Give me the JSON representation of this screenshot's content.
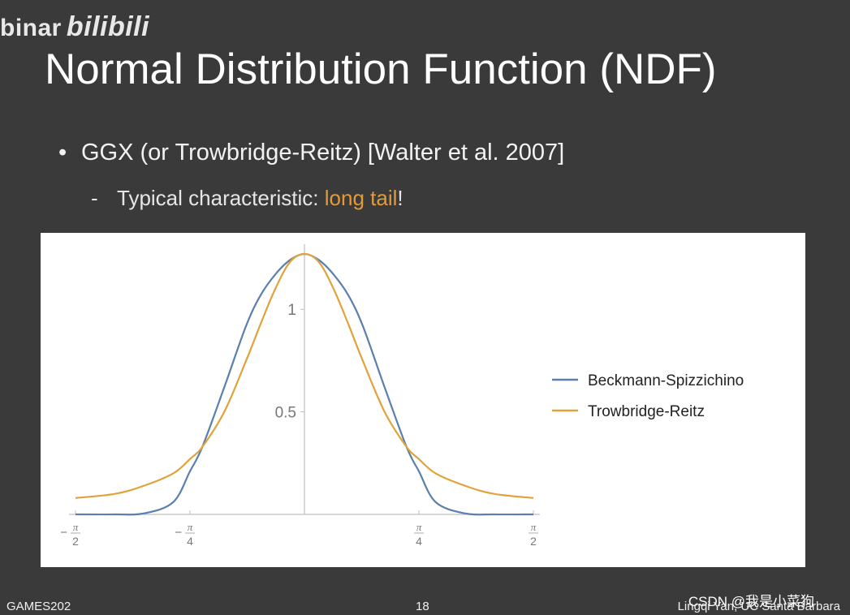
{
  "watermark": {
    "left_text": "binar",
    "logo_text": "bilibili"
  },
  "slide": {
    "title": "Normal Distribution Function (NDF)",
    "bullet": "GGX (or Trowbridge-Reitz) [Walter et al. 2007]",
    "sub_prefix": "Typical characteristic: ",
    "sub_highlight": "long tail",
    "sub_suffix": "!"
  },
  "colors": {
    "accent": "#e39a3b",
    "beckmann": "#5b7fae",
    "trowbridge": "#e0a33c",
    "background": "#3a3a3a"
  },
  "chart_data": {
    "type": "line",
    "title": "",
    "xlabel": "",
    "ylabel": "",
    "xlim": [
      -1.5708,
      1.5708
    ],
    "ylim": [
      0,
      1.27
    ],
    "x_ticks": [
      {
        "value": -1.5708,
        "num": "π",
        "den": "2",
        "sign": "−"
      },
      {
        "value": -0.7854,
        "num": "π",
        "den": "4",
        "sign": "−"
      },
      {
        "value": 0.7854,
        "num": "π",
        "den": "4",
        "sign": ""
      },
      {
        "value": 1.5708,
        "num": "π",
        "den": "2",
        "sign": ""
      }
    ],
    "y_ticks": [
      {
        "value": 0.5,
        "label": "0.5"
      },
      {
        "value": 1,
        "label": "1"
      }
    ],
    "legend_position": "right",
    "grid": false,
    "x": [
      -1.5708,
      -1.3,
      -1.1,
      -0.9,
      -0.7854,
      -0.7,
      -0.55,
      -0.4,
      -0.3,
      -0.2,
      -0.1,
      0,
      0.1,
      0.2,
      0.3,
      0.4,
      0.55,
      0.7,
      0.7854,
      0.9,
      1.1,
      1.3,
      1.5708
    ],
    "series": [
      {
        "name": "Beckmann-Spizzichino",
        "color": "#5b7fae",
        "values": [
          0.0,
          0.0,
          0.005,
          0.06,
          0.21,
          0.33,
          0.62,
          0.92,
          1.07,
          1.17,
          1.24,
          1.27,
          1.24,
          1.17,
          1.07,
          0.92,
          0.62,
          0.33,
          0.21,
          0.06,
          0.005,
          0.0,
          0.0
        ]
      },
      {
        "name": "Trowbridge-Reitz",
        "color": "#e0a33c",
        "values": [
          0.08,
          0.1,
          0.14,
          0.2,
          0.27,
          0.33,
          0.5,
          0.75,
          0.93,
          1.1,
          1.23,
          1.27,
          1.23,
          1.1,
          0.93,
          0.75,
          0.5,
          0.33,
          0.27,
          0.2,
          0.14,
          0.1,
          0.08
        ]
      }
    ]
  },
  "footer": {
    "left": "GAMES202",
    "page": "18",
    "right": "Lingqi Yan, UC Santa Barbara",
    "csdn": "CSDN @我是小菜狗"
  }
}
